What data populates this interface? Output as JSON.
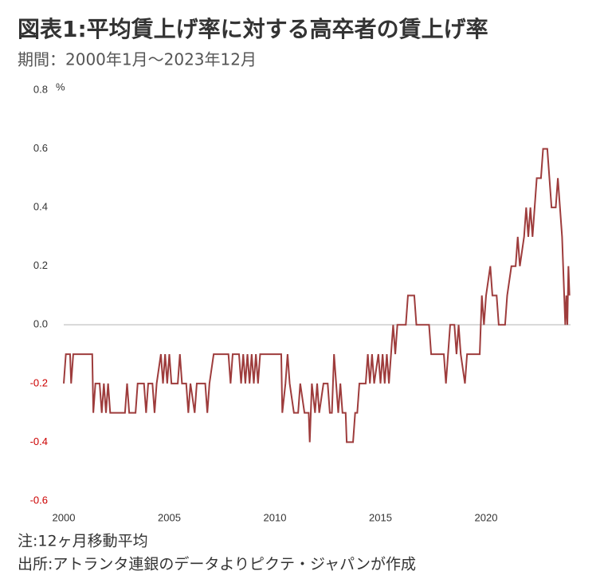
{
  "chart_data": {
    "type": "line",
    "title": "図表1:平均賃上げ率に対する高卒者の賃上げ率",
    "subtitle": "期間：2000年1月～2023年12月",
    "y_unit": "%",
    "notes": [
      "注:12ヶ月移動平均",
      "出所:アトランタ連銀のデータよりピクテ・ジャパンが作成"
    ],
    "xlim": [
      2000,
      2024
    ],
    "xticks": [
      2000,
      2005,
      2010,
      2015,
      2020
    ],
    "ylim": [
      -0.6,
      0.8
    ],
    "yticks": [
      {
        "value": -0.6,
        "label": "-0.6"
      },
      -0.4,
      -0.2,
      {
        "value": 0,
        "label": "0.0"
      },
      0.2,
      0.4,
      0.6,
      0.8
    ],
    "negative_tick_color": "#cc0000",
    "zero_line_color": "#cccccc",
    "series": [
      {
        "color": "#9e3c3c",
        "x": [
          2000,
          2000.1,
          2000.3,
          2000.35,
          2000.45,
          2001.35,
          2001.4,
          2001.5,
          2001.7,
          2001.8,
          2001.9,
          2002,
          2002.1,
          2002.2,
          2002.9,
          2003,
          2003.1,
          2003.4,
          2003.5,
          2003.8,
          2003.9,
          2004,
          2004.2,
          2004.3,
          2004.4,
          2004.6,
          2004.7,
          2004.8,
          2004.9,
          2005,
          2005.1,
          2005.4,
          2005.5,
          2005.6,
          2005.8,
          2005.9,
          2006,
          2006.2,
          2006.3,
          2006.7,
          2006.8,
          2006.9,
          2007.1,
          2007.8,
          2007.9,
          2008,
          2008.3,
          2008.4,
          2008.5,
          2008.6,
          2008.7,
          2008.8,
          2008.9,
          2009,
          2009.1,
          2009.2,
          2009.3,
          2010.3,
          2010.35,
          2010.5,
          2010.6,
          2010.7,
          2010.9,
          2011.1,
          2011.2,
          2011.4,
          2011.6,
          2011.65,
          2011.75,
          2011.9,
          2012,
          2012.1,
          2012.3,
          2012.5,
          2012.6,
          2012.7,
          2012.8,
          2013,
          2013.1,
          2013.2,
          2013.35,
          2013.4,
          2013.7,
          2013.8,
          2013.9,
          2014,
          2014.3,
          2014.4,
          2014.5,
          2014.6,
          2014.7,
          2014.9,
          2015,
          2015.1,
          2015.2,
          2015.3,
          2015.4,
          2015.5,
          2015.6,
          2015.7,
          2015.8,
          2016.2,
          2016.3,
          2016.6,
          2016.7,
          2017.3,
          2017.4,
          2018,
          2018.1,
          2018.2,
          2018.3,
          2018.5,
          2018.6,
          2018.7,
          2018.8,
          2019,
          2019.1,
          2019.7,
          2019.8,
          2019.9,
          2020,
          2020.2,
          2020.3,
          2020.5,
          2020.6,
          2020.9,
          2021,
          2021.2,
          2021.4,
          2021.5,
          2021.6,
          2021.8,
          2021.9,
          2022,
          2022.1,
          2022.2,
          2022.4,
          2022.6,
          2022.7,
          2022.9,
          2023,
          2023.1,
          2023.3,
          2023.4,
          2023.6,
          2023.75,
          2023.8,
          2023.85,
          2023.9,
          2023.95
        ],
        "values": [
          -0.2,
          -0.1,
          -0.1,
          -0.2,
          -0.1,
          -0.1,
          -0.3,
          -0.2,
          -0.2,
          -0.3,
          -0.2,
          -0.3,
          -0.2,
          -0.3,
          -0.3,
          -0.2,
          -0.3,
          -0.3,
          -0.2,
          -0.2,
          -0.3,
          -0.2,
          -0.2,
          -0.3,
          -0.2,
          -0.1,
          -0.2,
          -0.1,
          -0.2,
          -0.1,
          -0.2,
          -0.2,
          -0.1,
          -0.2,
          -0.2,
          -0.3,
          -0.2,
          -0.3,
          -0.2,
          -0.2,
          -0.3,
          -0.2,
          -0.1,
          -0.1,
          -0.2,
          -0.1,
          -0.1,
          -0.2,
          -0.1,
          -0.2,
          -0.1,
          -0.2,
          -0.1,
          -0.2,
          -0.1,
          -0.2,
          -0.1,
          -0.1,
          -0.3,
          -0.2,
          -0.1,
          -0.2,
          -0.3,
          -0.3,
          -0.2,
          -0.3,
          -0.3,
          -0.4,
          -0.2,
          -0.3,
          -0.2,
          -0.3,
          -0.2,
          -0.2,
          -0.3,
          -0.3,
          -0.1,
          -0.3,
          -0.2,
          -0.3,
          -0.3,
          -0.4,
          -0.4,
          -0.3,
          -0.3,
          -0.2,
          -0.2,
          -0.1,
          -0.2,
          -0.1,
          -0.2,
          -0.1,
          -0.2,
          -0.1,
          -0.2,
          -0.1,
          -0.2,
          -0.1,
          0,
          -0.1,
          0,
          0,
          0.1,
          0.1,
          0,
          0,
          -0.1,
          -0.1,
          -0.2,
          -0.1,
          0,
          0,
          -0.1,
          0,
          -0.1,
          -0.2,
          -0.1,
          -0.1,
          0.1,
          0,
          0.1,
          0.2,
          0.1,
          0.1,
          0,
          0,
          0.1,
          0.2,
          0.2,
          0.3,
          0.2,
          0.3,
          0.4,
          0.3,
          0.4,
          0.3,
          0.5,
          0.5,
          0.6,
          0.6,
          0.5,
          0.4,
          0.4,
          0.5,
          0.3,
          0,
          0.1,
          0,
          0.2,
          0.1
        ]
      }
    ]
  }
}
